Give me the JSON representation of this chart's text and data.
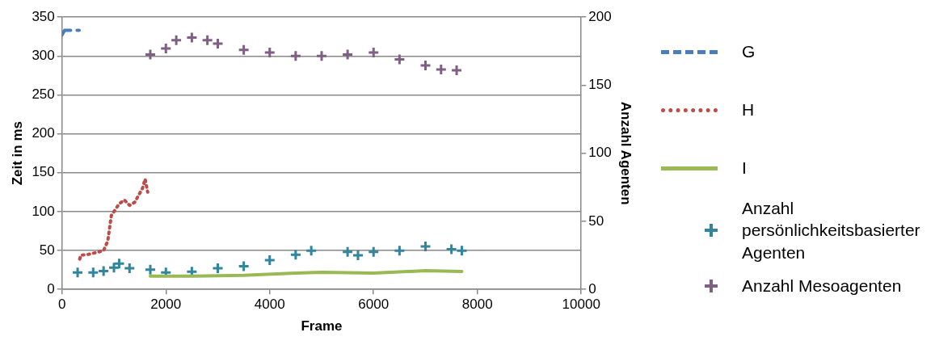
{
  "chart_data": {
    "type": "line",
    "xlabel": "Frame",
    "ylabel": "Zeit in ms",
    "y2label": "Anzahl Agenten",
    "xlim": [
      0,
      10000
    ],
    "xticks": [
      0,
      2000,
      4000,
      6000,
      8000,
      10000
    ],
    "ylim": [
      0,
      350
    ],
    "yticks": [
      0,
      50,
      100,
      150,
      200,
      250,
      300,
      350
    ],
    "y2lim": [
      0,
      200
    ],
    "y2ticks": [
      0,
      50,
      100,
      150,
      200
    ],
    "grid": "y",
    "legend": "right",
    "series": [
      {
        "name": "G",
        "type": "line",
        "line_style": "dashed",
        "marker": "none",
        "color": "#4a7ebb",
        "x": [
          0,
          50,
          330
        ],
        "values": [
          327,
          333,
          333
        ]
      },
      {
        "name": "H",
        "type": "line",
        "line_style": "dotted",
        "marker": "none",
        "color": "#be4b48",
        "x": [
          340,
          360,
          500,
          700,
          800,
          880,
          950,
          1000,
          1100,
          1200,
          1300,
          1400,
          1550,
          1600,
          1650
        ],
        "values": [
          39,
          44,
          45,
          48,
          50,
          62,
          95,
          100,
          110,
          115,
          108,
          112,
          130,
          142,
          125
        ]
      },
      {
        "name": "I",
        "type": "line",
        "line_style": "solid",
        "marker": "none",
        "color": "#98b954",
        "x": [
          1700,
          2500,
          3500,
          4500,
          5000,
          6000,
          7000,
          7700
        ],
        "values": [
          17,
          17,
          18,
          21,
          22,
          21,
          24,
          23
        ]
      },
      {
        "name": "Anzahl persönlichkeitsbasierter Agenten",
        "type": "scatter",
        "marker": "cross",
        "axis": "y2",
        "color": "#31859c",
        "x": [
          300,
          600,
          800,
          1000,
          1100,
          1300,
          1700,
          2000,
          2500,
          3000,
          3500,
          4000,
          4500,
          4800,
          5500,
          5700,
          6000,
          6500,
          7000,
          7500,
          7700
        ],
        "values": [
          12.5,
          12.5,
          13.5,
          16,
          19,
          15.5,
          14.5,
          12.5,
          13,
          15.5,
          17,
          21.5,
          25.5,
          28.5,
          27.5,
          25,
          27.5,
          28.5,
          31.5,
          29.5,
          28.5
        ]
      },
      {
        "name": "Anzahl Mesoagenten",
        "type": "scatter",
        "marker": "cross",
        "axis": "y2",
        "color": "#7f6084",
        "x": [
          1700,
          2000,
          2200,
          2500,
          2800,
          3000,
          3500,
          4000,
          4500,
          5000,
          5500,
          6000,
          6500,
          7000,
          7300,
          7600
        ],
        "values": [
          172.5,
          177,
          183,
          185,
          183,
          180.5,
          176,
          174,
          171.5,
          171.5,
          172.5,
          174,
          169,
          164.5,
          161.5,
          161
        ]
      }
    ]
  }
}
